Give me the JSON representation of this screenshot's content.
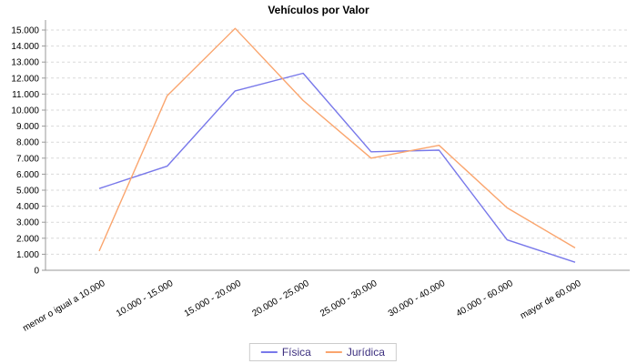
{
  "chart_data": {
    "type": "line",
    "title": "Vehículos por Valor",
    "categories": [
      "menor o igual a 10.000",
      "10.000 - 15.000",
      "15.000 - 20.000",
      "20.000 - 25.000",
      "25.000 - 30.000",
      "30.000 - 40.000",
      "40.000 - 60.000",
      "mayor de 60.000"
    ],
    "series": [
      {
        "name": "Física",
        "color": "#7878ea",
        "values": [
          5100,
          6500,
          11200,
          12300,
          7400,
          7500,
          1900,
          500
        ]
      },
      {
        "name": "Jurídica",
        "color": "#faa56e",
        "values": [
          1200,
          10900,
          15100,
          10600,
          7000,
          7800,
          3900,
          1400
        ]
      }
    ],
    "ylim": [
      0,
      15000
    ],
    "ytick_step": 1000,
    "ytick_labels": [
      "0",
      "1.000",
      "2.000",
      "3.000",
      "4.000",
      "5.000",
      "6.000",
      "7.000",
      "8.000",
      "9.000",
      "10.000",
      "11.000",
      "12.000",
      "13.000",
      "14.000",
      "15.000"
    ],
    "xlabel": "",
    "ylabel": "",
    "grid": "horizontal-dashed",
    "legend_position": "bottom-center",
    "colors": {
      "legend_text": "#3b2e7e",
      "axis": "#999999",
      "gridline": "#d9d9d9",
      "title_text": "#000000",
      "tick_text": "#000000"
    }
  }
}
